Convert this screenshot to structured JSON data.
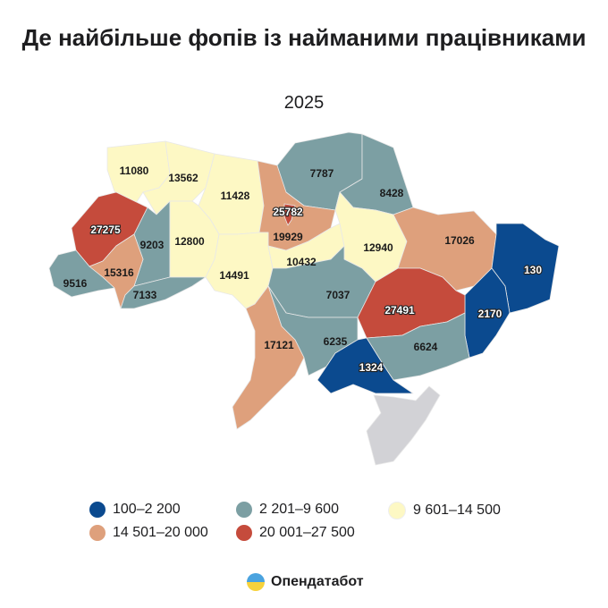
{
  "title": "Де найбільше фопів із найманими працівниками",
  "subtitle": "2025",
  "colors": {
    "c1": "#0b4a8f",
    "c2": "#7c9fa3",
    "c3": "#fdf8c4",
    "c4": "#dea07c",
    "c5": "#c54b3c",
    "no_data": "#d2d2d6"
  },
  "legend": [
    {
      "label": "100–2 200",
      "color": "#0b4a8f"
    },
    {
      "label": "2 201–9 600",
      "color": "#7c9fa3"
    },
    {
      "label": "9 601–14 500",
      "color": "#fdf8c4"
    },
    {
      "label": "14 501–20 000",
      "color": "#dea07c"
    },
    {
      "label": "20 001–27 500",
      "color": "#c54b3c"
    }
  ],
  "regions": {
    "volyn": "11080",
    "rivne": "13562",
    "zhytomyr": "11428",
    "kyiv_city": "25782",
    "kyiv_oblast": "19929",
    "chernihiv": "7787",
    "sumy": "8428",
    "lviv": "27275",
    "ternopil": "9203",
    "khmelnytskyi": "12800",
    "vinnytsia": "14491",
    "zakarpattia": "9516",
    "ivano_frankivsk": "15316",
    "chernivtsi": "7133",
    "cherkasy": "10432",
    "poltava": "12940",
    "kharkiv": "17026",
    "luhansk": "130",
    "donetsk": "2170",
    "dnipro": "27491",
    "kirovohrad": "7037",
    "mykolaiv": "6235",
    "odesa": "17121",
    "zaporizhzhia": "6624",
    "kherson": "1324"
  },
  "brand": "Опендатабот"
}
